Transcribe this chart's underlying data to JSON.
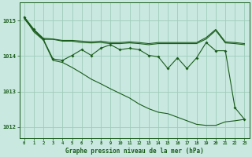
{
  "title": "Graphe pression niveau de la mer (hPa)",
  "bg_color": "#c8e8e0",
  "grid_color": "#a0ccbc",
  "line_color": "#1a5c1a",
  "tick_color": "#1a5c1a",
  "hours": [
    0,
    1,
    2,
    3,
    4,
    5,
    6,
    7,
    8,
    9,
    10,
    11,
    12,
    13,
    14,
    15,
    16,
    17,
    18,
    19,
    20,
    21,
    22,
    23
  ],
  "x_labels": [
    "0",
    "1",
    "2",
    "3",
    "4",
    "5",
    "6",
    "7",
    "8",
    "9",
    "10",
    "11",
    "12",
    "13",
    "14",
    "15",
    "16",
    "17",
    "18",
    "19",
    "20",
    "21",
    "22",
    "23"
  ],
  "line_top": [
    1015.1,
    1014.75,
    1014.5,
    1014.48,
    1014.44,
    1014.44,
    1014.42,
    1014.4,
    1014.42,
    1014.38,
    1014.38,
    1014.4,
    1014.38,
    1014.35,
    1014.38,
    1014.38,
    1014.38,
    1014.38,
    1014.38,
    1014.52,
    1014.75,
    1014.4,
    1014.38,
    1014.35
  ],
  "line_upper_mid": [
    1015.05,
    1014.72,
    1014.47,
    1014.47,
    1014.42,
    1014.42,
    1014.38,
    1014.37,
    1014.38,
    1014.35,
    1014.35,
    1014.37,
    1014.35,
    1014.32,
    1014.35,
    1014.35,
    1014.35,
    1014.35,
    1014.35,
    1014.48,
    1014.72,
    1014.37,
    1014.35,
    1014.32
  ],
  "line_markers": [
    1015.1,
    1014.75,
    1014.47,
    1013.92,
    1013.88,
    1014.02,
    1014.18,
    1014.02,
    1014.22,
    1014.32,
    1014.18,
    1014.22,
    1014.18,
    1014.02,
    1013.98,
    1013.65,
    1013.95,
    1013.65,
    1013.95,
    1014.38,
    1014.15,
    1014.15,
    1012.55,
    1012.22
  ],
  "line_bottom": [
    1015.1,
    1014.68,
    1014.45,
    1013.88,
    1013.82,
    1013.68,
    1013.52,
    1013.35,
    1013.22,
    1013.08,
    1012.95,
    1012.82,
    1012.65,
    1012.52,
    1012.42,
    1012.38,
    1012.28,
    1012.18,
    1012.08,
    1012.05,
    1012.05,
    1012.15,
    1012.18,
    1012.22
  ],
  "ylim": [
    1011.7,
    1015.5
  ],
  "yticks": [
    1012,
    1013,
    1014,
    1015
  ]
}
